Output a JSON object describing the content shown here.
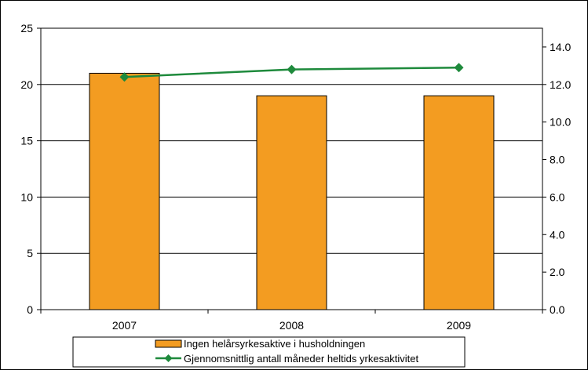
{
  "chart_data": {
    "type": "bar",
    "categories": [
      "2007",
      "2008",
      "2009"
    ],
    "series": [
      {
        "name": "Ingen helårsyrkesaktive i husholdningen",
        "type": "bar",
        "axis": "left",
        "color": "#f39c21",
        "values": [
          21,
          19,
          19
        ]
      },
      {
        "name": "Gjennomsnittlig antall måneder heltids yrkesaktivitet",
        "type": "line",
        "axis": "right",
        "color": "#1e8a3c",
        "marker": "diamond",
        "values": [
          12.4,
          12.8,
          12.9
        ]
      }
    ],
    "y_left": {
      "ylim": [
        0,
        25
      ],
      "ticks": [
        0,
        5,
        10,
        15,
        20,
        25
      ],
      "tick_labels": [
        "0",
        "5",
        "10",
        "15",
        "20",
        "25"
      ]
    },
    "y_right": {
      "ylim": [
        0,
        15
      ],
      "ticks": [
        0,
        2,
        4,
        6,
        8,
        10,
        12,
        14
      ],
      "tick_labels": [
        "0.0",
        "2.0",
        "4.0",
        "6.0",
        "8.0",
        "10.0",
        "12.0",
        "14.0"
      ]
    },
    "grid": true,
    "legend_position": "bottom"
  }
}
